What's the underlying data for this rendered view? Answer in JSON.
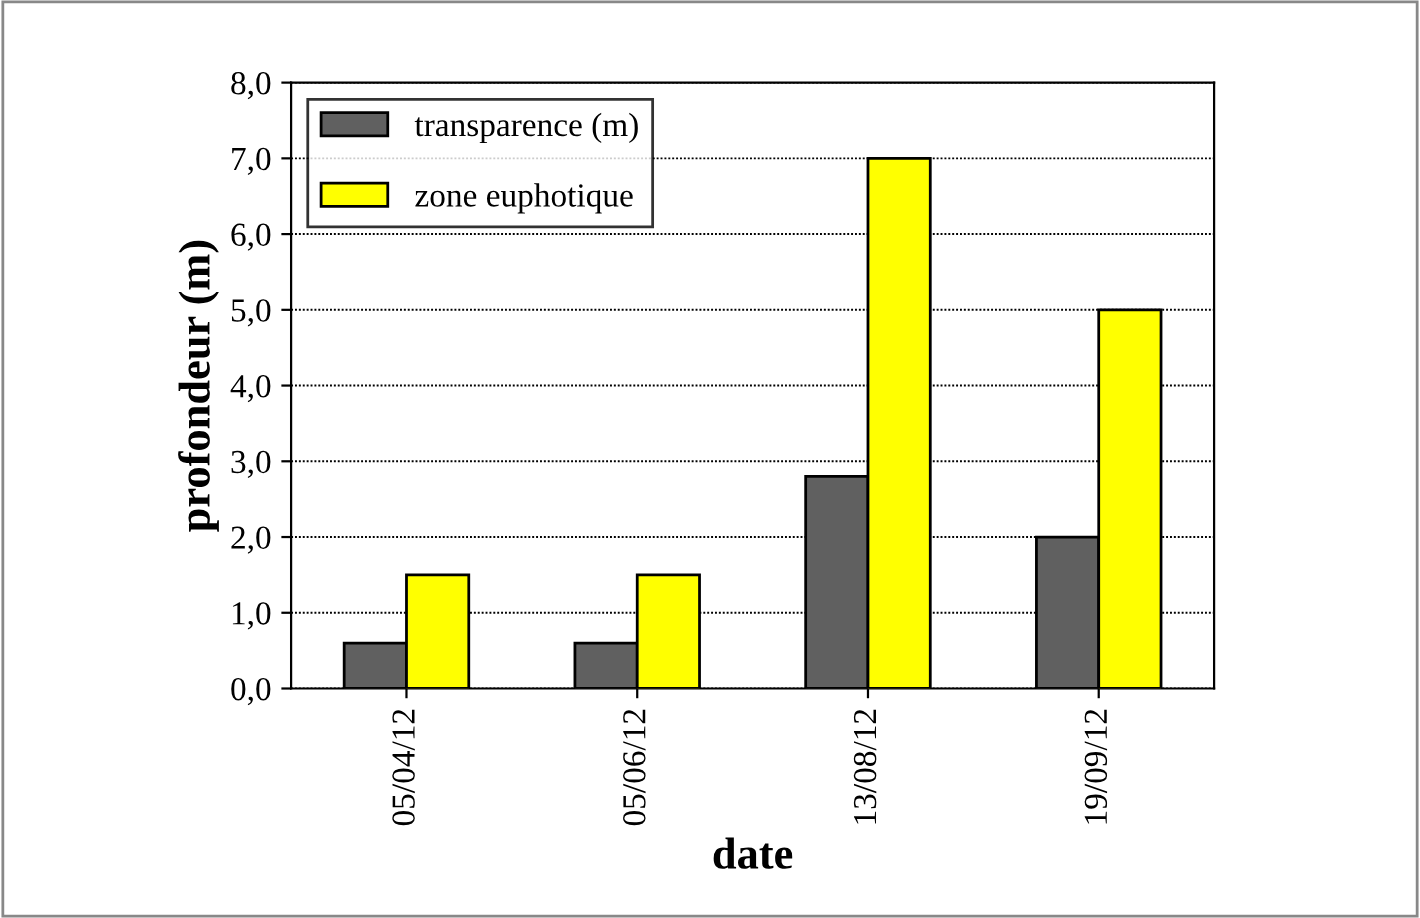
{
  "chart_data": {
    "type": "bar",
    "xlabel": "date",
    "ylabel": "profondeur (m)",
    "categories": [
      "05/04/12",
      "05/06/12",
      "13/08/12",
      "19/09/12"
    ],
    "series": [
      {
        "name": "transparence (m)",
        "color": "#606060",
        "values": [
          0.6,
          0.6,
          2.8,
          2.0
        ]
      },
      {
        "name": "zone euphotique",
        "color": "#ffff00",
        "values": [
          1.5,
          1.5,
          7.0,
          5.0
        ]
      }
    ],
    "ylim": [
      0,
      8
    ],
    "yticks": [
      {
        "value": 0,
        "label": "0,0"
      },
      {
        "value": 1,
        "label": "1,0"
      },
      {
        "value": 2,
        "label": "2,0"
      },
      {
        "value": 3,
        "label": "3,0"
      },
      {
        "value": 4,
        "label": "4,0"
      },
      {
        "value": 5,
        "label": "5,0"
      },
      {
        "value": 6,
        "label": "6,0"
      },
      {
        "value": 7,
        "label": "7,0"
      },
      {
        "value": 8,
        "label": "8,0"
      }
    ],
    "grid": "y",
    "legend": "top left"
  }
}
